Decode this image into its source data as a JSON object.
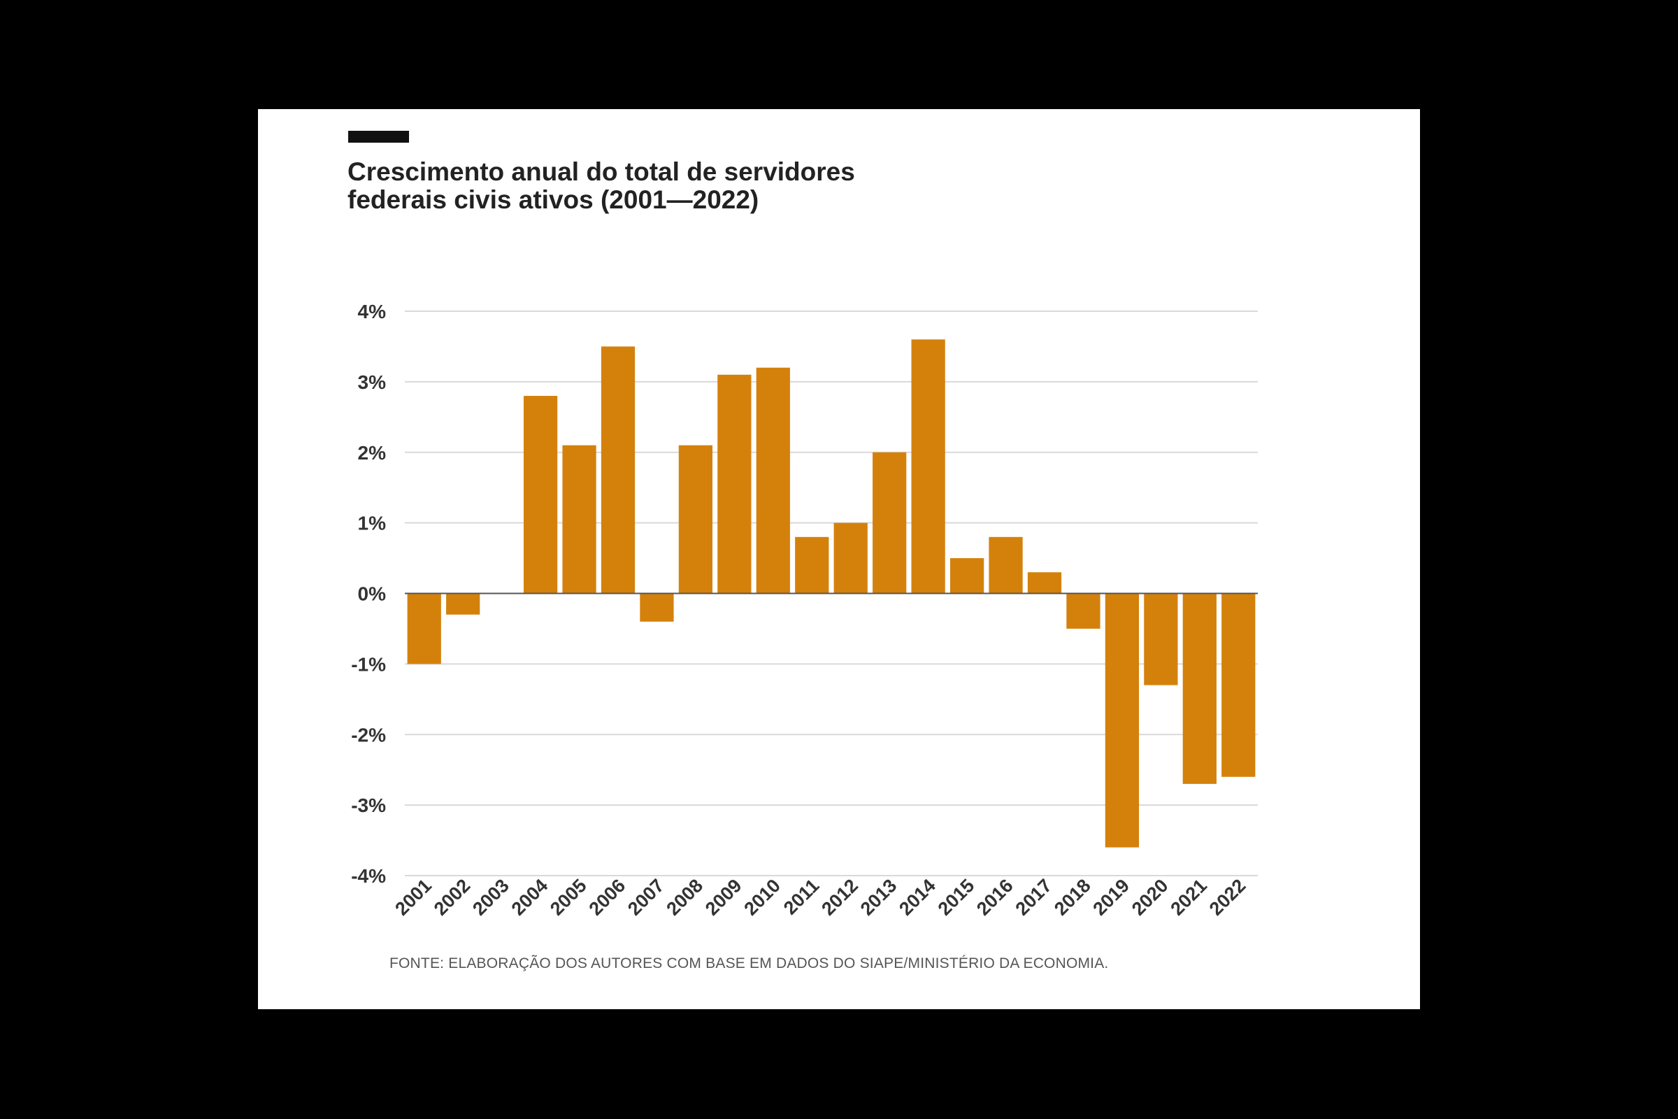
{
  "chart_data": {
    "type": "bar",
    "title_lines": [
      "Crescimento anual do total de servidores",
      "federais civis ativos (2001—2022)"
    ],
    "categories": [
      "2001",
      "2002",
      "2003",
      "2004",
      "2005",
      "2006",
      "2007",
      "2008",
      "2009",
      "2010",
      "2011",
      "2012",
      "2013",
      "2014",
      "2015",
      "2016",
      "2017",
      "2018",
      "2019",
      "2020",
      "2021",
      "2022"
    ],
    "values": [
      -1.0,
      -0.3,
      0.0,
      2.8,
      2.1,
      3.5,
      -0.4,
      2.1,
      3.1,
      3.2,
      0.8,
      1.0,
      2.0,
      3.6,
      0.5,
      0.8,
      0.3,
      -0.5,
      -3.6,
      -1.3,
      -2.7,
      -2.6
    ],
    "unit": "%",
    "ylim": [
      -4,
      4
    ],
    "yticks": [
      4,
      3,
      2,
      1,
      0,
      -1,
      -2,
      -3,
      -4
    ],
    "ytick_labels": [
      "4%",
      "3%",
      "2%",
      "1%",
      "0%",
      "-1%",
      "-2%",
      "-3%",
      "-4%"
    ],
    "grid": true,
    "bar_color": "#d4810c",
    "xlabel": "",
    "ylabel": "",
    "source": "FONTE: ELABORAÇÃO DOS AUTORES COM BASE EM DADOS DO SIAPE/MINISTÉRIO DA ECONOMIA."
  }
}
